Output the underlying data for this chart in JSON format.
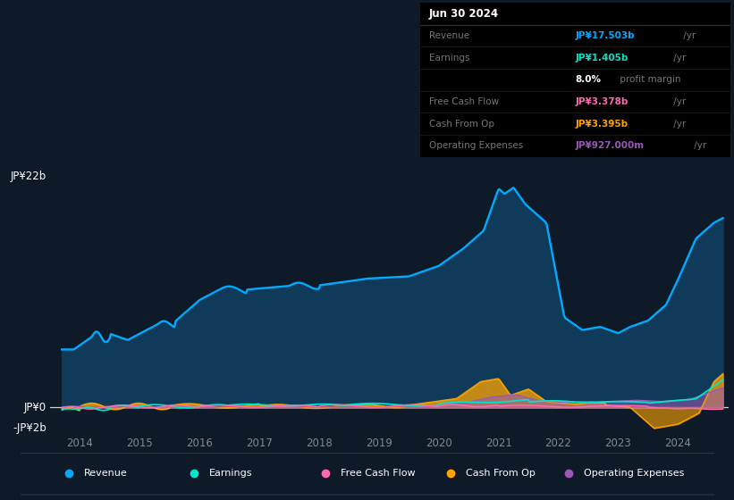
{
  "bg_color": "#0e1a27",
  "plot_bg_color": "#0e1a27",
  "ylabel_top": "JP¥22b",
  "ylabel_zero": "JP¥0",
  "ylabel_neg": "-JP¥2b",
  "ylim": [
    -2.4,
    24.0
  ],
  "xlim": [
    2013.5,
    2024.85
  ],
  "xticks": [
    2014,
    2015,
    2016,
    2017,
    2018,
    2019,
    2020,
    2021,
    2022,
    2023,
    2024
  ],
  "revenue_color": "#00aaff",
  "revenue_fill": "#0f3a5a",
  "earnings_color": "#00e5cc",
  "fcf_color": "#ff69b4",
  "cashop_color": "#ffa500",
  "cashop_neg_color": "#7a4a00",
  "opex_color": "#9b59b6",
  "grid_color": "#1e3048",
  "zero_line_color": "#dddddd",
  "legend_border_color": "#2a3a4a",
  "legend_items": [
    {
      "label": "Revenue",
      "color": "#00aaff"
    },
    {
      "label": "Earnings",
      "color": "#00e5cc"
    },
    {
      "label": "Free Cash Flow",
      "color": "#ff69b4"
    },
    {
      "label": "Cash From Op",
      "color": "#ffa500"
    },
    {
      "label": "Operating Expenses",
      "color": "#9b59b6"
    }
  ],
  "infobox": {
    "title": "Jun 30 2024",
    "rows": [
      {
        "label": "Revenue",
        "value": "JP¥17.503b",
        "unit": " /yr",
        "color": "#00aaff"
      },
      {
        "label": "Earnings",
        "value": "JP¥1.405b",
        "unit": " /yr",
        "color": "#00e5cc"
      },
      {
        "label": "",
        "value": "8.0%",
        "unit": " profit margin",
        "color": "#ffffff"
      },
      {
        "label": "Free Cash Flow",
        "value": "JP¥3.378b",
        "unit": " /yr",
        "color": "#ff69b4"
      },
      {
        "label": "Cash From Op",
        "value": "JP¥3.395b",
        "unit": " /yr",
        "color": "#ffa500"
      },
      {
        "label": "Operating Expenses",
        "value": "JP¥927.000m",
        "unit": " /yr",
        "color": "#9b59b6"
      }
    ]
  }
}
